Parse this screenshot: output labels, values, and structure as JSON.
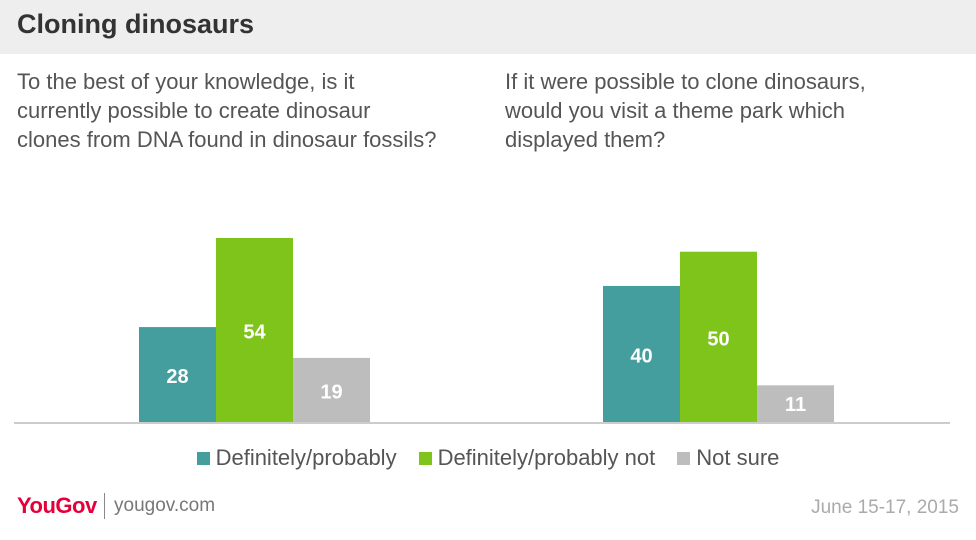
{
  "header": {
    "title": "Cloning dinosaurs"
  },
  "questions": [
    "To the best of your knowledge, is it currently possible to create dinosaur clones from DNA found in dinosaur fossils?",
    "If it were possible to clone dinosaurs, would you visit a theme park which displayed them?"
  ],
  "chart_data": {
    "type": "bar",
    "categories": [
      "To the best of your knowledge, is it currently possible to create dinosaur clones from DNA found in dinosaur fossils?",
      "If it were possible to clone dinosaurs, would you visit a theme park which displayed them?"
    ],
    "series": [
      {
        "name": "Definitely/probably",
        "color": "#459e9e",
        "values": [
          28,
          40
        ]
      },
      {
        "name": "Definitely/probably not",
        "color": "#7fc41b",
        "values": [
          54,
          50
        ]
      },
      {
        "name": "Not sure",
        "color": "#bdbdbd",
        "values": [
          19,
          11
        ]
      }
    ],
    "ylim": [
      0,
      54
    ],
    "grid": false,
    "data_labels": true,
    "legend_position": "bottom"
  },
  "footer": {
    "logo": "YouGov",
    "site": "yougov.com",
    "date": "June 15-17, 2015"
  }
}
